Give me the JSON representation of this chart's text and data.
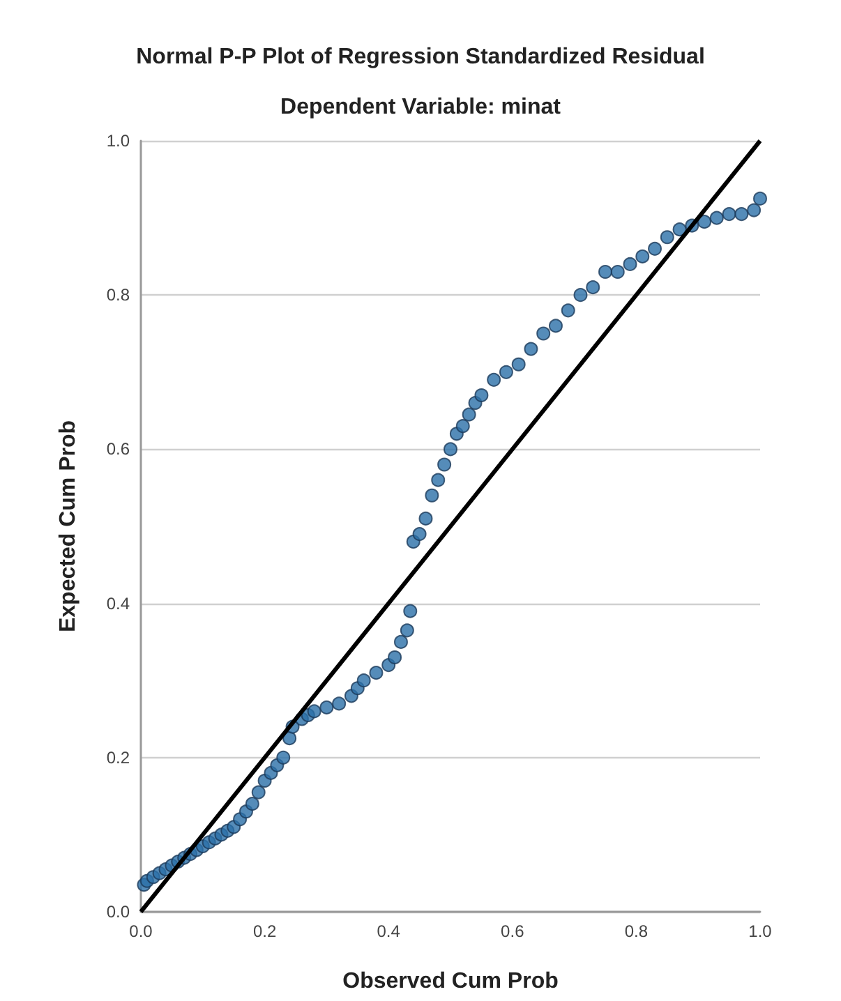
{
  "chart_data": {
    "type": "scatter",
    "title": "Normal P-P Plot of Regression Standardized Residual",
    "subtitle": "Dependent Variable: minat",
    "xlabel": "Observed Cum Prob",
    "ylabel": "Expected Cum Prob",
    "xlim": [
      0,
      1
    ],
    "ylim": [
      0,
      1
    ],
    "xticks": [
      {
        "value": 0,
        "label": "0.0"
      },
      {
        "value": 0.2,
        "label": "0.2"
      },
      {
        "value": 0.4,
        "label": "0.4"
      },
      {
        "value": 0.6,
        "label": "0.6"
      },
      {
        "value": 0.8,
        "label": "0.8"
      },
      {
        "value": 1,
        "label": "1.0"
      }
    ],
    "yticks": [
      {
        "value": 0,
        "label": "0.0"
      },
      {
        "value": 0.2,
        "label": "0.2"
      },
      {
        "value": 0.4,
        "label": "0.4"
      },
      {
        "value": 0.6,
        "label": "0.6"
      },
      {
        "value": 0.8,
        "label": "0.8"
      },
      {
        "value": 1,
        "label": "1.0"
      }
    ],
    "grid": "y",
    "marker": "circle",
    "series": [
      {
        "color": "#2a6fa8",
        "x": [
          0.005,
          0.01,
          0.02,
          0.03,
          0.04,
          0.05,
          0.06,
          0.07,
          0.08,
          0.09,
          0.1,
          0.11,
          0.12,
          0.13,
          0.14,
          0.15,
          0.16,
          0.17,
          0.18,
          0.19,
          0.2,
          0.21,
          0.22,
          0.23,
          0.24,
          0.245,
          0.26,
          0.27,
          0.28,
          0.3,
          0.32,
          0.34,
          0.35,
          0.36,
          0.38,
          0.4,
          0.41,
          0.42,
          0.43,
          0.435,
          0.44,
          0.45,
          0.46,
          0.47,
          0.48,
          0.49,
          0.5,
          0.51,
          0.52,
          0.53,
          0.54,
          0.55,
          0.57,
          0.59,
          0.61,
          0.63,
          0.65,
          0.67,
          0.69,
          0.71,
          0.73,
          0.75,
          0.77,
          0.79,
          0.81,
          0.83,
          0.85,
          0.87,
          0.89,
          0.91,
          0.93,
          0.95,
          0.97,
          0.99,
          1.0
        ],
        "values": [
          0.035,
          0.04,
          0.045,
          0.05,
          0.055,
          0.06,
          0.065,
          0.07,
          0.075,
          0.08,
          0.085,
          0.09,
          0.095,
          0.1,
          0.105,
          0.11,
          0.12,
          0.13,
          0.14,
          0.155,
          0.17,
          0.18,
          0.19,
          0.2,
          0.225,
          0.24,
          0.25,
          0.255,
          0.26,
          0.265,
          0.27,
          0.28,
          0.29,
          0.3,
          0.31,
          0.32,
          0.33,
          0.35,
          0.365,
          0.39,
          0.48,
          0.49,
          0.51,
          0.54,
          0.56,
          0.58,
          0.6,
          0.62,
          0.63,
          0.645,
          0.66,
          0.67,
          0.69,
          0.7,
          0.71,
          0.73,
          0.75,
          0.76,
          0.78,
          0.8,
          0.81,
          0.83,
          0.83,
          0.84,
          0.85,
          0.86,
          0.875,
          0.885,
          0.89,
          0.895,
          0.9,
          0.905,
          0.905,
          0.91,
          0.925
        ]
      },
      {
        "type": "line",
        "color": "#000000",
        "marker": "none",
        "x": [
          0,
          1
        ],
        "values": [
          0,
          1
        ]
      }
    ]
  }
}
